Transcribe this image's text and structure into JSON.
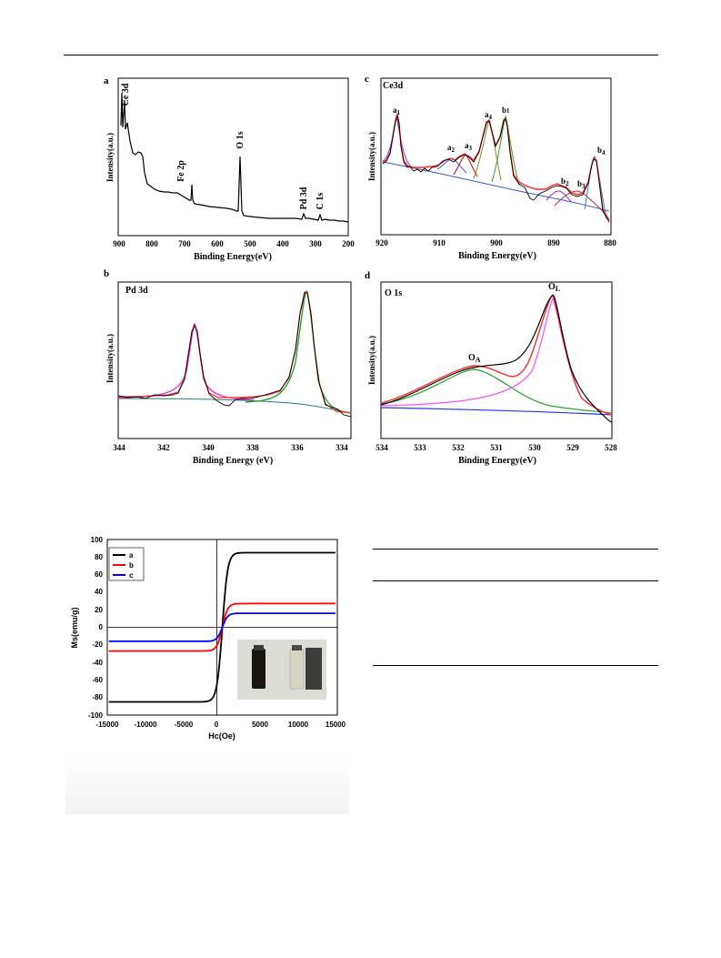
{
  "figure3": {
    "panels": [
      {
        "letter": "a",
        "title": "",
        "xlabel": "Binding Energy(eV)",
        "ylabel": "Intensity(a.u.)",
        "xticks": [
          "900",
          "800",
          "700",
          "600",
          "500",
          "400",
          "300",
          "200"
        ],
        "peaks": [
          "Ce 3d",
          "Fe 2p",
          "O 1s",
          "Pd 3d",
          "C 1s"
        ]
      },
      {
        "letter": "b",
        "title": "Pd 3d",
        "xlabel": "Binding Energy (eV)",
        "ylabel": "Intensity(a.u.)",
        "xticks": [
          "344",
          "342",
          "340",
          "338",
          "336",
          "334"
        ]
      },
      {
        "letter": "c",
        "title": "Ce3d",
        "xlabel": "Binding Energy(eV)",
        "ylabel": "Intensity(a.u.)",
        "xticks": [
          "920",
          "910",
          "900",
          "890",
          "880"
        ],
        "peaks": [
          {
            "base": "a",
            "sub": "1"
          },
          {
            "base": "a",
            "sub": "2"
          },
          {
            "base": "a",
            "sub": "3"
          },
          {
            "base": "a",
            "sub": "4"
          },
          {
            "base": "b",
            "sub": "1"
          },
          {
            "base": "b",
            "sub": "2"
          },
          {
            "base": "b",
            "sub": "3"
          },
          {
            "base": "b",
            "sub": "4"
          }
        ]
      },
      {
        "letter": "d",
        "title": "O 1s",
        "xlabel": "Binding Energy(eV)",
        "ylabel": "Intensity(a.u.)",
        "xticks": [
          "534",
          "533",
          "532",
          "531",
          "530",
          "529",
          "528"
        ],
        "peaks": [
          {
            "base": "O",
            "sub": "A"
          },
          {
            "base": "O",
            "sub": "L"
          }
        ]
      }
    ]
  },
  "chart_data": [
    {
      "type": "line",
      "panel": "a",
      "xlabel": "Binding Energy(eV)",
      "ylabel": "Intensity(a.u.)",
      "xlim": [
        900,
        200
      ],
      "annotations": [
        {
          "text": "Ce 3d",
          "x": 885
        },
        {
          "text": "Fe 2p",
          "x": 711
        },
        {
          "text": "O 1s",
          "x": 530
        },
        {
          "text": "Pd 3d",
          "x": 337
        },
        {
          "text": "C 1s",
          "x": 285
        }
      ]
    },
    {
      "type": "line",
      "panel": "b",
      "title": "Pd 3d",
      "xlabel": "Binding Energy (eV)",
      "ylabel": "Intensity(a.u.)",
      "xlim": [
        344,
        333.5
      ],
      "peak_positions_eV": [
        340.6,
        335.3
      ]
    },
    {
      "type": "line",
      "panel": "c",
      "title": "Ce3d",
      "xlabel": "Binding Energy(eV)",
      "ylabel": "Intensity(a.u.)",
      "xlim": [
        920,
        880
      ],
      "peak_positions_eV": {
        "a1": 916.8,
        "a2": 907.8,
        "a3": 904.0,
        "a4": 901.0,
        "b1": 898.5,
        "b2": 889.2,
        "b3": 885.5,
        "b4": 882.6
      }
    },
    {
      "type": "line",
      "panel": "d",
      "title": "O 1s",
      "xlabel": "Binding Energy(eV)",
      "ylabel": "Intensity(a.u.)",
      "xlim": [
        534,
        528
      ],
      "peak_positions_eV": {
        "OA": 531.6,
        "OL": 529.5
      }
    },
    {
      "type": "line",
      "panel": "hysteresis",
      "xlabel": "Hc(Oe)",
      "ylabel": "Ms(emu/g)",
      "xlim": [
        -15000,
        15000
      ],
      "ylim": [
        -100,
        100
      ],
      "xticks": [
        -15000,
        -10000,
        -5000,
        0,
        5000,
        10000,
        15000
      ],
      "yticks": [
        -100,
        -80,
        -60,
        -40,
        -20,
        0,
        20,
        40,
        60,
        80,
        100
      ],
      "legend_position": "top-left",
      "series": [
        {
          "name": "a",
          "color": "#000000",
          "saturation": 85
        },
        {
          "name": "b",
          "color": "#ff0000",
          "saturation": 27
        },
        {
          "name": "c",
          "color": "#0000ff",
          "saturation": 16
        }
      ]
    }
  ],
  "figure4": {
    "xlabel": "Hc(Oe)",
    "ylabel": "Ms(emu/g)",
    "xticks": [
      "-15000",
      "-10000",
      "-5000",
      "0",
      "5000",
      "10000",
      "15000"
    ],
    "yticks": [
      "100",
      "80",
      "60",
      "40",
      "20",
      "0",
      "-20",
      "-40",
      "-60",
      "-80",
      "-100"
    ],
    "legend": [
      "a",
      "b",
      "c"
    ]
  }
}
